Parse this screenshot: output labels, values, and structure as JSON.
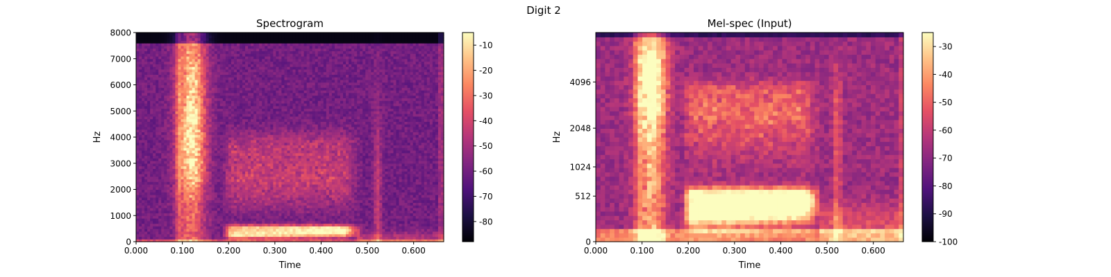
{
  "figure": {
    "suptitle": "Digit 2"
  },
  "chart_data": [
    {
      "type": "heatmap",
      "title": "Spectrogram",
      "xlabel": "Time",
      "ylabel": "Hz",
      "x_ticks": [
        "0.000",
        "0.100",
        "0.200",
        "0.300",
        "0.400",
        "0.500",
        "0.600"
      ],
      "y_ticks": [
        "0",
        "1000",
        "2000",
        "3000",
        "4000",
        "5000",
        "6000",
        "7000",
        "8000"
      ],
      "xlim": [
        0,
        0.665
      ],
      "ylim": [
        0,
        8000
      ],
      "y_scale": "linear",
      "colorbar": {
        "range": [
          -88,
          -5
        ],
        "ticks": [
          "-10",
          "-20",
          "-30",
          "-40",
          "-50",
          "-60",
          "-70",
          "-80"
        ],
        "colormap": "magma"
      }
    },
    {
      "type": "heatmap",
      "title": "Mel-spec (Input)",
      "xlabel": "Time",
      "ylabel": "Hz",
      "x_ticks": [
        "0.000",
        "0.100",
        "0.200",
        "0.300",
        "0.400",
        "0.500",
        "0.600"
      ],
      "y_ticks": [
        "0",
        "512",
        "1024",
        "2048",
        "4096"
      ],
      "xlim": [
        0,
        0.665
      ],
      "ylim": [
        0,
        8000
      ],
      "y_scale": "mel",
      "colorbar": {
        "range": [
          -100,
          -25
        ],
        "ticks": [
          "-30",
          "-40",
          "-50",
          "-60",
          "-70",
          "-80",
          "-90",
          "-100"
        ],
        "colormap": "magma"
      }
    }
  ]
}
